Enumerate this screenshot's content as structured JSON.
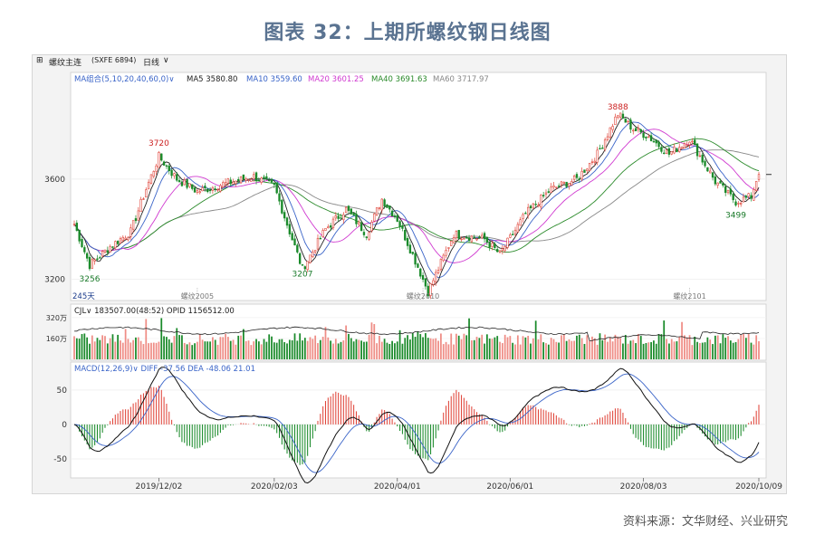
{
  "title": "图表 32：上期所螺纹钢日线图",
  "source": "资料来源：文华财经、兴业研究",
  "toolbar": {
    "symbol": "螺纹主连",
    "code": "(SXFE 6894)",
    "period": "日线"
  },
  "colors": {
    "up": "#e0453a",
    "down": "#1a8a2a",
    "ma5": "#222222",
    "ma10": "#3a64c8",
    "ma20": "#d03ad0",
    "ma40": "#2a8a2a",
    "ma60": "#888888",
    "title": "#5a7391"
  },
  "chart_data": [
    {
      "type": "candlestick",
      "panel": "price",
      "legend_prefix": "MA组合(5,10,20,40,60,0)",
      "indicators": [
        {
          "name": "MA5",
          "value": "3580.80"
        },
        {
          "name": "MA10",
          "value": "3559.60"
        },
        {
          "name": "MA20",
          "value": "3601.25"
        },
        {
          "name": "MA40",
          "value": "3691.63"
        },
        {
          "name": "MA60",
          "value": "3717.97"
        }
      ],
      "y_ticks": [
        3600,
        3200
      ],
      "ylim": [
        3140,
        3990
      ],
      "annotations": [
        {
          "label": "3720",
          "kind": "high",
          "date_index": 33
        },
        {
          "label": "3256",
          "kind": "low",
          "date_index": 6
        },
        {
          "label": "3207",
          "kind": "low",
          "date_index": 89
        },
        {
          "label": "3888",
          "kind": "high",
          "date_index": 212
        },
        {
          "label": "3499",
          "kind": "low",
          "date_index": 258
        }
      ],
      "contract_marks": [
        {
          "label": "螺纹2005",
          "date_index": 48
        },
        {
          "label": "螺纹2010",
          "date_index": 136
        },
        {
          "label": "螺纹2101",
          "date_index": 240
        }
      ],
      "bars_label": "245天",
      "anchors": [
        [
          0,
          3420
        ],
        [
          6,
          3256
        ],
        [
          14,
          3330
        ],
        [
          22,
          3390
        ],
        [
          28,
          3560
        ],
        [
          33,
          3690
        ],
        [
          40,
          3600
        ],
        [
          48,
          3550
        ],
        [
          58,
          3580
        ],
        [
          70,
          3610
        ],
        [
          78,
          3570
        ],
        [
          86,
          3330
        ],
        [
          89,
          3240
        ],
        [
          98,
          3400
        ],
        [
          106,
          3480
        ],
        [
          114,
          3380
        ],
        [
          120,
          3520
        ],
        [
          126,
          3440
        ],
        [
          134,
          3250
        ],
        [
          138,
          3150
        ],
        [
          148,
          3380
        ],
        [
          160,
          3360
        ],
        [
          166,
          3300
        ],
        [
          176,
          3460
        ],
        [
          186,
          3560
        ],
        [
          196,
          3600
        ],
        [
          204,
          3700
        ],
        [
          212,
          3860
        ],
        [
          218,
          3800
        ],
        [
          224,
          3770
        ],
        [
          232,
          3700
        ],
        [
          240,
          3760
        ],
        [
          250,
          3590
        ],
        [
          258,
          3510
        ],
        [
          264,
          3530
        ],
        [
          267,
          3630
        ]
      ]
    },
    {
      "type": "bar",
      "panel": "volume",
      "legend_prefix": "CJL",
      "indicators": [
        {
          "name": "",
          "value": "183507.00(48:52)"
        },
        {
          "name": "OPID",
          "value": "1156512.00"
        }
      ],
      "y_ticks": [
        "320万",
        "160万"
      ],
      "series_note": "volume bars with open interest line"
    },
    {
      "type": "bar",
      "panel": "macd",
      "legend_prefix": "MACD(12,26,9)",
      "indicators": [
        {
          "name": "DIFF",
          "value": "-37.56"
        },
        {
          "name": "DEA",
          "value": "-48.06"
        },
        {
          "name": "",
          "value": "21.01"
        }
      ],
      "y_ticks": [
        50,
        0,
        -50
      ],
      "ylim": [
        -75,
        80
      ]
    }
  ],
  "x_axis": {
    "labels": [
      "2019/12/02",
      "2020/02/03",
      "2020/04/01",
      "2020/06/01",
      "2020/08/03",
      "2020/10/09"
    ],
    "label_indices": [
      33,
      78,
      126,
      170,
      222,
      267
    ]
  }
}
